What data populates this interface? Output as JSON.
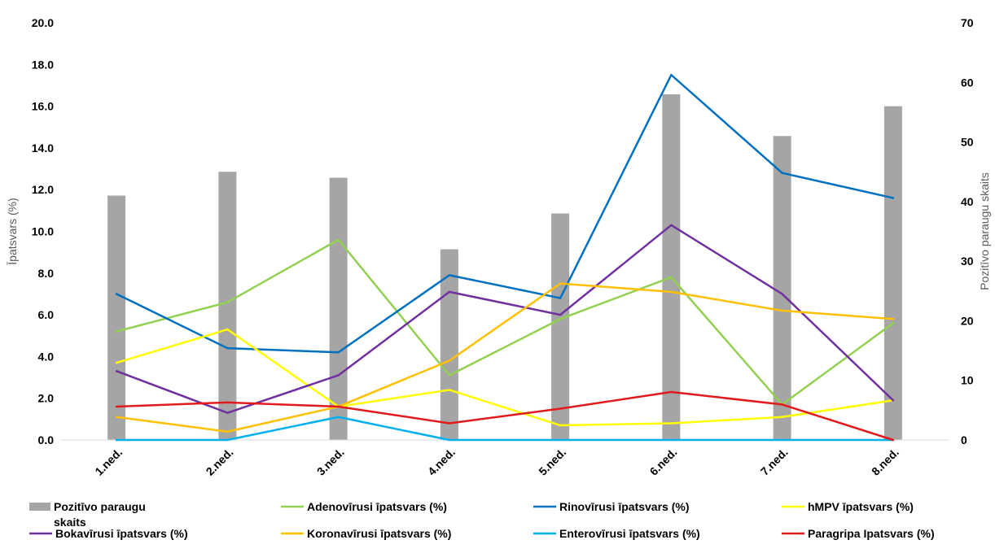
{
  "chart_data": {
    "type": "bar+line",
    "categories": [
      "1.ned.",
      "2.ned.",
      "3.ned.",
      "4.ned.",
      "5.ned.",
      "6.ned.",
      "7.ned.",
      "8.ned."
    ],
    "y_left": {
      "label": "Īpatsvars (%)",
      "min": 0,
      "max": 20,
      "step": 2,
      "ticks": [
        "0.0",
        "2.0",
        "4.0",
        "6.0",
        "8.0",
        "10.0",
        "12.0",
        "14.0",
        "16.0",
        "18.0",
        "20.0"
      ]
    },
    "y_right": {
      "label": "Pozitīvo paraugu skaits",
      "min": 0,
      "max": 70,
      "step": 10,
      "ticks": [
        "0",
        "10",
        "20",
        "30",
        "40",
        "50",
        "60",
        "70"
      ]
    },
    "bar_series": {
      "name": "Pozitīvo paraugu skaits",
      "axis": "right",
      "color": "#A5A5A5",
      "values": [
        41,
        45,
        44,
        32,
        38,
        58,
        51,
        56
      ]
    },
    "line_series": [
      {
        "name": "Adenovīrusi īpatsvars (%)",
        "color": "#92D050",
        "values": [
          5.2,
          6.6,
          9.6,
          3.1,
          5.8,
          7.8,
          1.7,
          5.6
        ]
      },
      {
        "name": "Rinovīrusi īpatsvars (%)",
        "color": "#0070C0",
        "values": [
          7.0,
          4.4,
          4.2,
          7.9,
          6.8,
          17.5,
          12.8,
          11.6
        ]
      },
      {
        "name": "hMPV īpatsvars (%)",
        "color": "#FFFF00",
        "values": [
          3.7,
          5.3,
          1.6,
          2.4,
          0.7,
          0.8,
          1.1,
          1.9
        ]
      },
      {
        "name": "Bokavīrusi īpatsvars (%)",
        "color": "#7030A0",
        "values": [
          3.3,
          1.3,
          3.1,
          7.1,
          6.0,
          10.3,
          7.0,
          1.9
        ]
      },
      {
        "name": "Koronavīrusi īpatsvars (%)",
        "color": "#FFC000",
        "values": [
          1.1,
          0.4,
          1.6,
          3.8,
          7.5,
          7.1,
          6.2,
          5.8
        ]
      },
      {
        "name": "Enterovīrusi īpatsvars (%)",
        "color": "#00B0F0",
        "values": [
          0.0,
          0.0,
          1.1,
          0.0,
          0.0,
          0.0,
          0.0,
          0.0
        ]
      },
      {
        "name": "Paragripa Ipatsvars (%)",
        "color": "#E31A1C",
        "values": [
          1.6,
          1.8,
          1.6,
          0.8,
          1.5,
          2.3,
          1.7,
          0.0
        ]
      }
    ],
    "legend": {
      "position": "bottom",
      "bar_label_line1": "Pozitīvo paraugu",
      "bar_label_line2": "skaits"
    },
    "grid": false
  }
}
